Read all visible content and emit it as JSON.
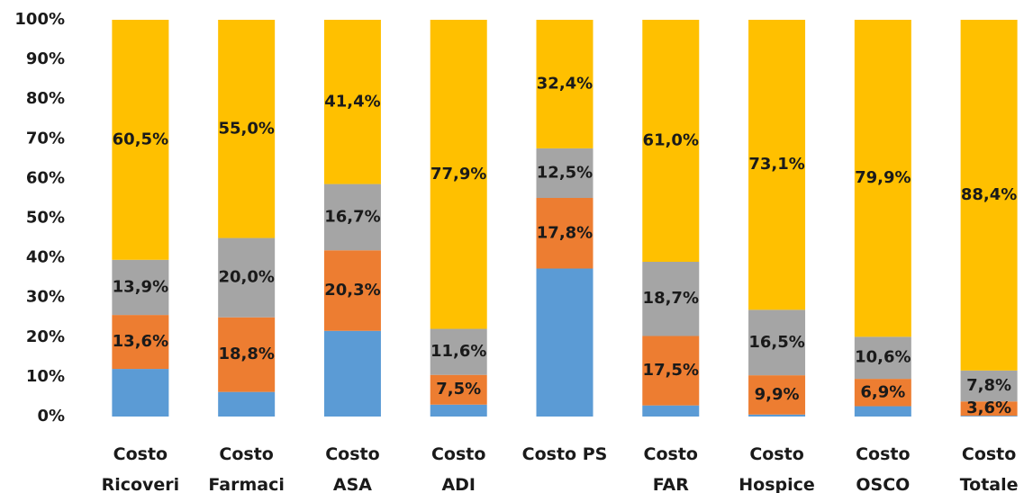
{
  "chart_data": {
    "type": "stacked_bar",
    "categories": [
      "Costo\nRicoveri",
      "Costo\nFarmaci",
      "Costo\nASA",
      "Costo\nADI",
      "Costo PS",
      "Costo\nFAR",
      "Costo\nHospice",
      "Costo\nOSCO",
      "Costo\nTotale"
    ],
    "series": [
      {
        "color": "#5b9bd5",
        "values": [
          12.0,
          6.2,
          21.6,
          3.0,
          37.3,
          2.8,
          0.5,
          2.6,
          0.2
        ]
      },
      {
        "color": "#ed7d31",
        "values": [
          13.6,
          18.8,
          20.3,
          7.5,
          17.8,
          17.5,
          9.9,
          6.9,
          3.6
        ],
        "value_labels": [
          "13,6%",
          "18,8%",
          "20,3%",
          "7,5%",
          "17,8%",
          "17,5%",
          "9,9%",
          "6,9%",
          "3,6%"
        ]
      },
      {
        "color": "#a5a5a5",
        "values": [
          13.9,
          20.0,
          16.7,
          11.6,
          12.5,
          18.7,
          16.5,
          10.6,
          7.8
        ],
        "value_labels": [
          "13,9%",
          "20,0%",
          "16,7%",
          "11,6%",
          "12,5%",
          "18,7%",
          "16,5%",
          "10,6%",
          "7,8%"
        ]
      },
      {
        "color": "#ffc000",
        "values": [
          60.5,
          55.0,
          41.4,
          77.9,
          32.4,
          61.0,
          73.1,
          79.9,
          88.4
        ],
        "value_labels": [
          "60,5%",
          "55,0%",
          "41,4%",
          "77,9%",
          "32,4%",
          "61,0%",
          "73,1%",
          "79,9%",
          "88,4%"
        ]
      }
    ],
    "ylim": [
      0,
      100
    ],
    "yticks": [
      {
        "value": 0,
        "label": "0%"
      },
      {
        "value": 10,
        "label": "10%"
      },
      {
        "value": 20,
        "label": "20%"
      },
      {
        "value": 30,
        "label": "30%"
      },
      {
        "value": 40,
        "label": "40%"
      },
      {
        "value": 50,
        "label": "50%"
      },
      {
        "value": 60,
        "label": "60%"
      },
      {
        "value": 70,
        "label": "70%"
      },
      {
        "value": 80,
        "label": "80%"
      },
      {
        "value": 90,
        "label": "90%"
      },
      {
        "value": 100,
        "label": "100%"
      }
    ],
    "grid": false
  }
}
